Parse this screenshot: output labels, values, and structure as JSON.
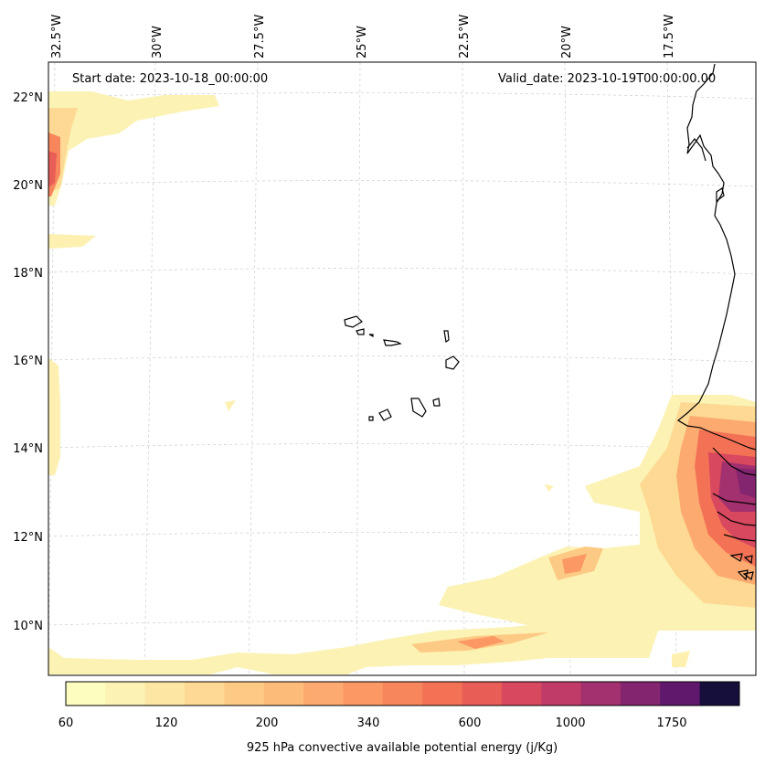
{
  "map": {
    "start_date": "Start date: 2023-10-18_00:00:00",
    "valid_date": "Valid_date: 2023-10-19T00:00:00.00",
    "lon_labels": [
      "32.5°W",
      "30°W",
      "27.5°W",
      "25°W",
      "22.5°W",
      "20°W",
      "17.5°W"
    ],
    "lat_labels": [
      "22°N",
      "20°N",
      "18°N",
      "16°N",
      "14°N",
      "12°N",
      "10°N"
    ],
    "grid": true,
    "coastline_color": "#000000"
  },
  "colorbar": {
    "ticks": [
      "60",
      "120",
      "200",
      "340",
      "600",
      "1000",
      "1750"
    ],
    "colors": [
      "#fcfdbf",
      "#fcf2b3",
      "#fde6a4",
      "#fdd994",
      "#fdca85",
      "#fdbb79",
      "#fcaa6f",
      "#fb9864",
      "#f8865c",
      "#f37256",
      "#e95d57",
      "#d8485f",
      "#c13b69",
      "#a3306f",
      "#83256f",
      "#5f186b",
      "#160f3b"
    ],
    "label": "925 hPa convective available potential energy (j/Kg)"
  }
}
